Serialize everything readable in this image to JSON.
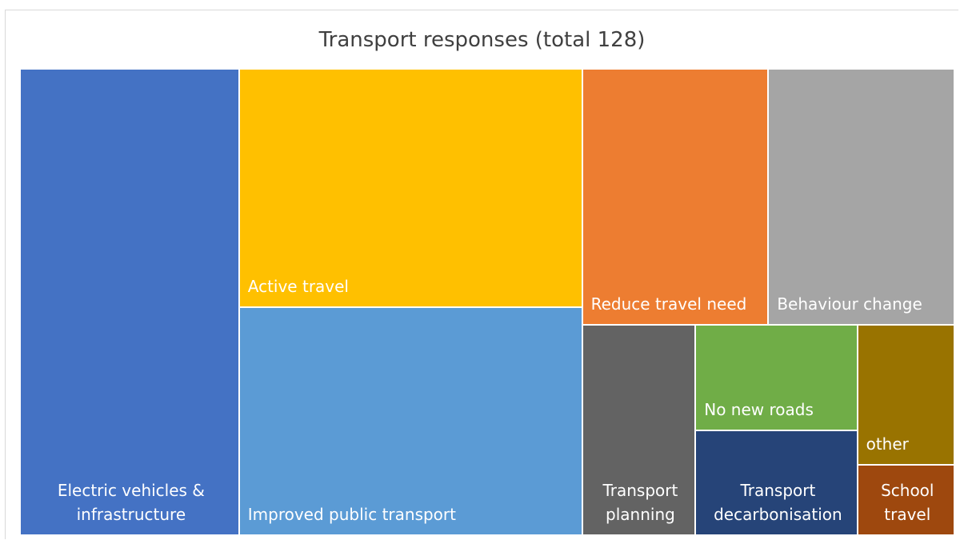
{
  "chart_data": {
    "type": "treemap",
    "title": "Transport responses (total 128)",
    "categories": [
      "Electric vehicles & infrastructure",
      "Active travel",
      "Improved public transport",
      "Reduce travel need",
      "Behaviour change",
      "Transport planning",
      "No new roads",
      "Transport decarbonisation",
      "other",
      "School travel"
    ],
    "values": [
      30,
      24,
      23,
      14,
      14,
      7,
      5,
      5,
      4,
      2
    ],
    "colors": [
      "#4472c4",
      "#ffc000",
      "#5b9bd5",
      "#ed7d31",
      "#a5a5a5",
      "#636363",
      "#70ad47",
      "#264478",
      "#997300",
      "#9e480e"
    ]
  }
}
